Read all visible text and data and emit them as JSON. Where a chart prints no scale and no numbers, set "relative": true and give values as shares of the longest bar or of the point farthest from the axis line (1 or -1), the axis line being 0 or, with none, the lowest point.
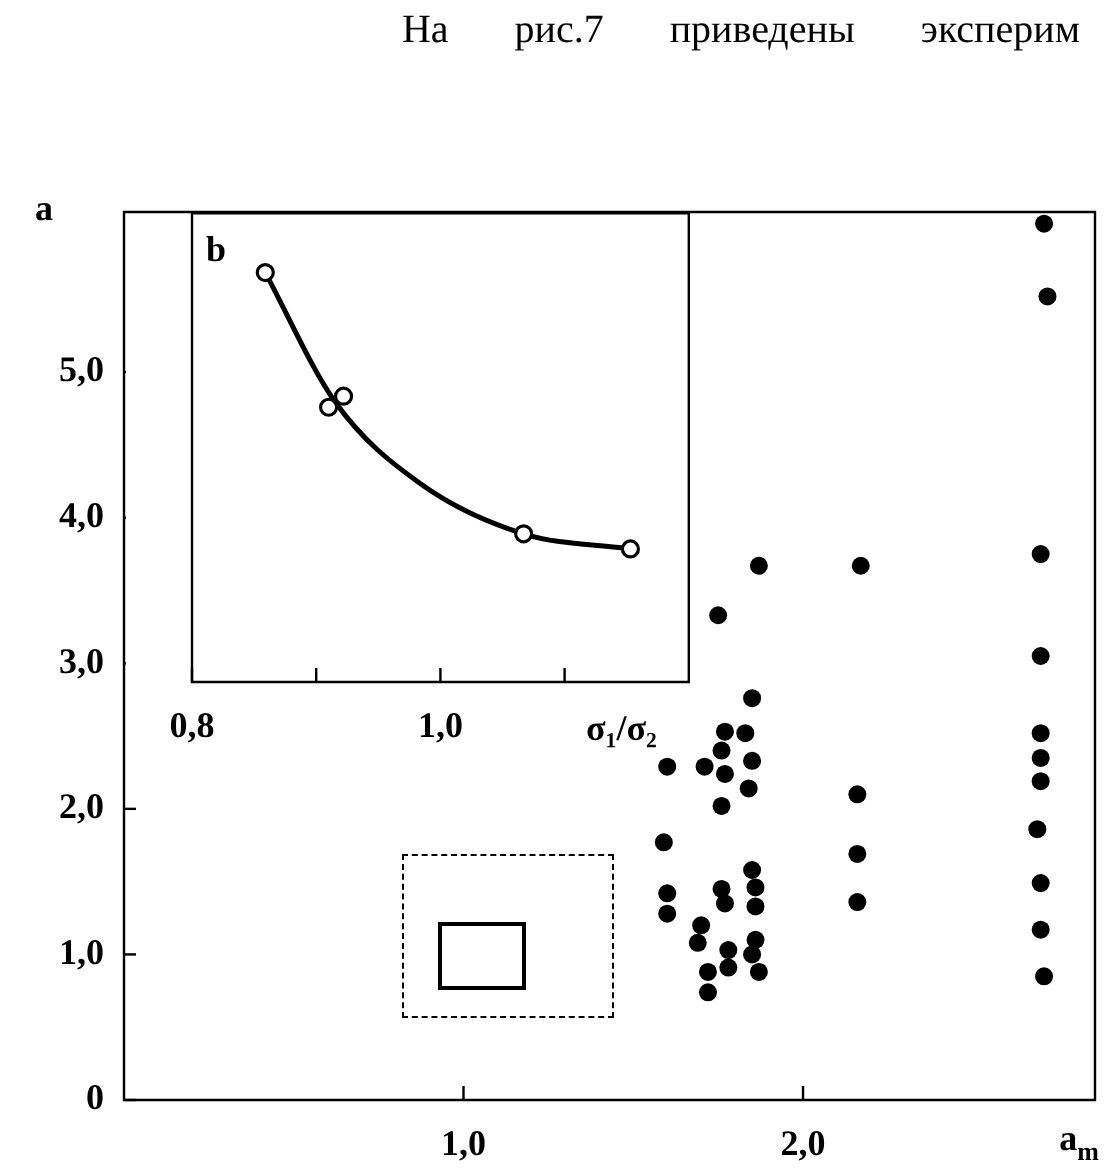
{
  "chart_data": [
    {
      "type": "scatter",
      "ylabel": "a",
      "xlabel": "a$_{m}$",
      "annotations": [
        "На рис.7 приведены эксперим"
      ],
      "x": [
        1.75,
        1.85,
        1.77,
        1.83,
        1.76,
        1.6,
        1.71,
        1.77,
        1.85,
        1.84,
        1.76,
        1.59,
        1.6,
        1.6,
        1.76,
        1.77,
        1.85,
        1.86,
        1.86,
        1.7,
        1.69,
        1.78,
        1.78,
        1.72,
        1.72,
        1.86,
        1.85,
        1.87,
        2.16,
        2.16,
        2.16,
        2.7,
        2.7,
        2.7,
        2.7,
        2.69,
        2.7,
        2.7,
        2.71,
        2.71,
        2.72,
        2.7,
        1.87,
        2.17
      ],
      "values": [
        3.33,
        2.76,
        2.53,
        2.52,
        2.4,
        2.29,
        2.29,
        2.24,
        2.33,
        2.14,
        2.02,
        1.77,
        1.42,
        1.28,
        1.45,
        1.35,
        1.58,
        1.46,
        1.33,
        1.2,
        1.08,
        1.03,
        0.91,
        0.88,
        0.74,
        1.1,
        1.0,
        0.88,
        2.1,
        1.69,
        1.36,
        3.05,
        2.52,
        2.35,
        2.19,
        1.86,
        1.49,
        1.17,
        0.85,
        6.02,
        5.52,
        3.75,
        3.67,
        3.67
      ],
      "color": "#000000",
      "marker": "circle",
      "xlim": [
        0,
        2.86
      ],
      "ylim": [
        0,
        6.1
      ],
      "xticks": [
        {
          "value": 1,
          "label": "1,0"
        },
        {
          "value": 2,
          "label": "2,0"
        }
      ],
      "yticks": [
        0,
        {
          "value": 1,
          "label": "1,0"
        },
        {
          "value": 2,
          "label": "2,0"
        },
        {
          "value": 3,
          "label": "3,0"
        },
        {
          "value": 4,
          "label": "4,0"
        },
        {
          "value": 5,
          "label": "5,0"
        }
      ],
      "grid": false,
      "legend": false
    },
    {
      "type": "scatter",
      "title": "b",
      "xlabel": "σ₁/σ₂",
      "relative": true,
      "tick_labels": "x",
      "xlim": [
        0.8,
        1.2
      ],
      "xticks": [
        {
          "value": 0.8,
          "label": "0,8"
        },
        {
          "value": 0.9,
          "label": null
        },
        {
          "value": 1.0,
          "label": "1,0"
        },
        {
          "value": 1.1,
          "label": null
        }
      ],
      "series": [
        {
          "type": "line",
          "color": "#000000",
          "marker": "none",
          "x": [
            0.859,
            0.915,
            0.984,
            1.067,
            1.153
          ],
          "values": [
            1,
            0.685,
            0.484,
            0.362,
            0.325
          ]
        },
        {
          "type": "scatter",
          "color": "#000000",
          "marker": "circle",
          "x": [
            0.859,
            0.91,
            0.922,
            1.067,
            1.153
          ],
          "values": [
            1,
            0.671,
            0.698,
            0.362,
            0.325
          ]
        }
      ],
      "grid": false,
      "legend": false
    }
  ]
}
